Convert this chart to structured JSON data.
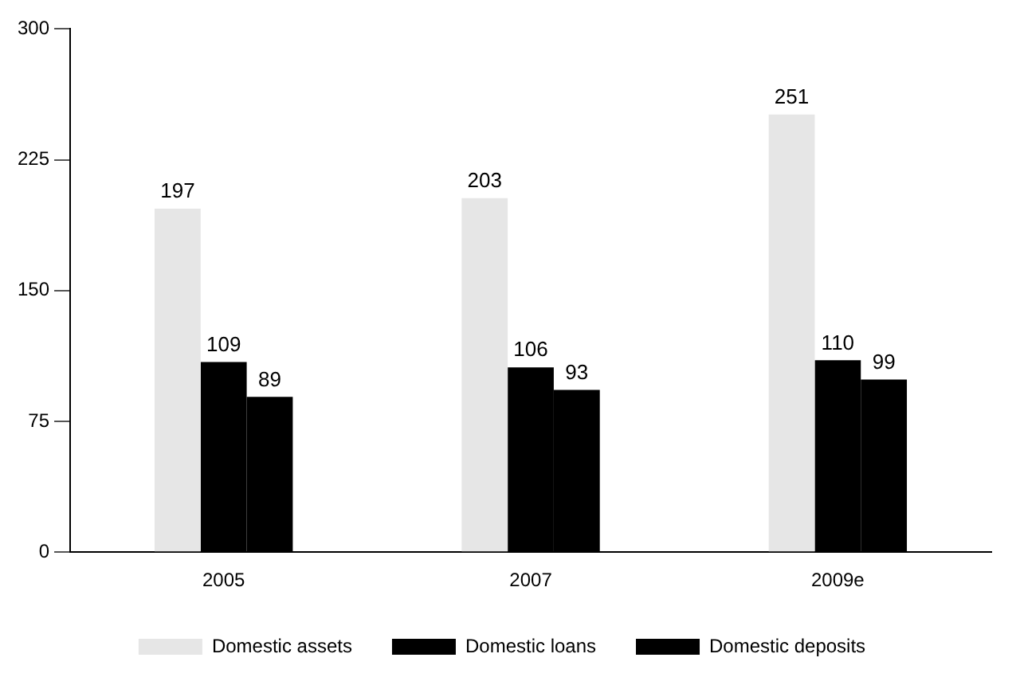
{
  "chart_data": {
    "type": "bar",
    "categories": [
      "2005",
      "2007",
      "2009e"
    ],
    "series": [
      {
        "name": "Domestic assets",
        "color": "#e6e6e6",
        "values": [
          197,
          203,
          251
        ]
      },
      {
        "name": "Domestic loans",
        "color": "#000000",
        "values": [
          109,
          106,
          110
        ]
      },
      {
        "name": "Domestic deposits",
        "color": "#000000",
        "values": [
          89,
          93,
          99
        ]
      }
    ],
    "ylim": [
      0,
      300
    ],
    "yticks": [
      0,
      75,
      150,
      225,
      300
    ],
    "data_labels": true,
    "legend": "bottom",
    "grid": false
  }
}
